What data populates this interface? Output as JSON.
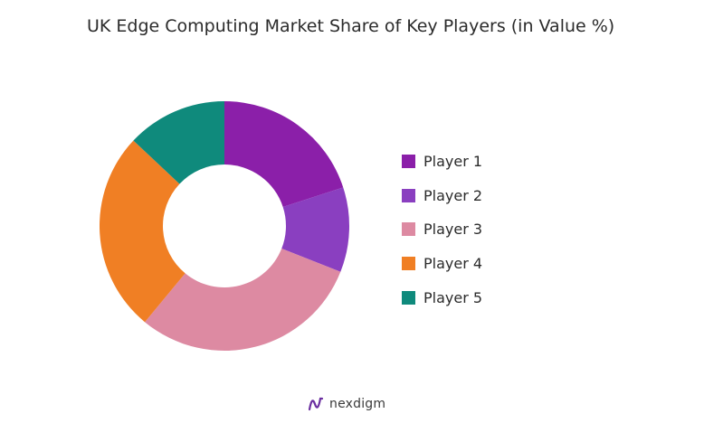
{
  "chart_data": {
    "type": "pie",
    "variant": "donut",
    "title": "UK Edge Computing Market Share of Key Players (in Value %)",
    "categories": [
      "Player 1",
      "Player 2",
      "Player 3",
      "Player 4",
      "Player 5"
    ],
    "values": [
      20,
      11,
      30,
      26,
      13
    ],
    "colors": [
      "#8b1fa9",
      "#8a3fc0",
      "#dd8aa2",
      "#f07f24",
      "#0f8a7c"
    ],
    "legend": "right"
  },
  "brand": {
    "name": "nexdigm",
    "icon": "nexdigm-logo-icon",
    "color": "#6b2fa0"
  }
}
